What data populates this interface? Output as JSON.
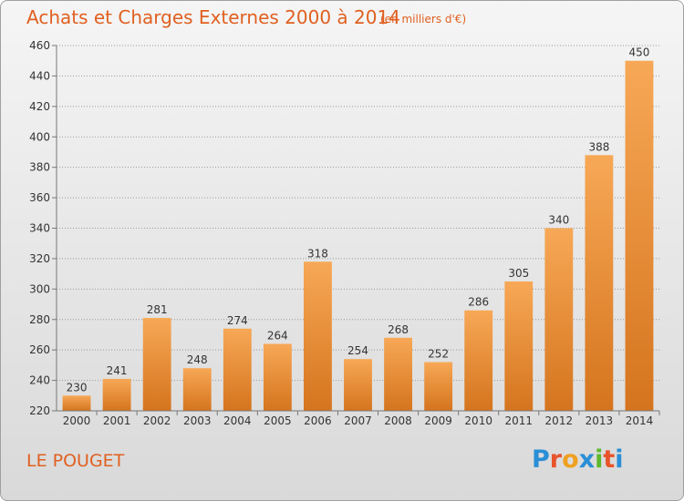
{
  "header": {
    "title": "Achats et Charges Externes 2000 à 2014",
    "subtitle": "(en milliers d'€)"
  },
  "footer": {
    "place": "LE POUGET",
    "logo_letters": [
      "P",
      "r",
      "o",
      "x",
      "i",
      "t",
      "i"
    ],
    "logo_colors": [
      "#2a8fd6",
      "#e8542a",
      "#f0a020",
      "#2a8fd6",
      "#5cb82e",
      "#e8542a",
      "#2a8fd6"
    ]
  },
  "colors": {
    "bar_top": "#f7a856",
    "bar_bottom": "#d5741e",
    "grid": "#999999",
    "axis": "#777777"
  },
  "chart_data": {
    "type": "bar",
    "title": "Achats et Charges Externes 2000 à 2014",
    "subtitle": "(en milliers d'€)",
    "xlabel": "",
    "ylabel": "",
    "categories": [
      "2000",
      "2001",
      "2002",
      "2003",
      "2004",
      "2005",
      "2006",
      "2007",
      "2008",
      "2009",
      "2010",
      "2011",
      "2012",
      "2013",
      "2014"
    ],
    "values": [
      230,
      241,
      281,
      248,
      274,
      264,
      318,
      254,
      268,
      252,
      286,
      305,
      340,
      388,
      450
    ],
    "ylim": [
      220,
      460
    ],
    "yticks": [
      220,
      240,
      260,
      280,
      300,
      320,
      340,
      360,
      380,
      400,
      420,
      440,
      460
    ],
    "grid": true,
    "legend": "none"
  }
}
